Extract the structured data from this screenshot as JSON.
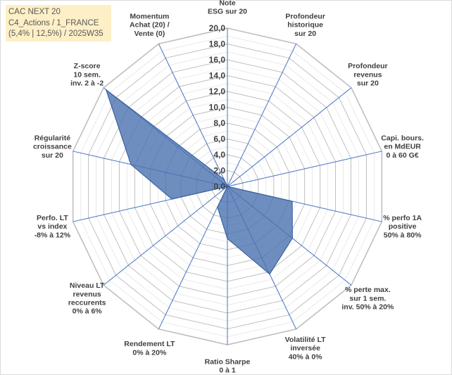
{
  "title_box": {
    "line1": "CAC NEXT 20",
    "line2": "C4_Actions / 1_FRANCE",
    "line3": "(5,4% | 12,5%) / 2025W35"
  },
  "chart_data": {
    "type": "radar",
    "r_min": 0,
    "r_max": 20,
    "ticks": [
      "0,0",
      "2,0",
      "4,0",
      "6,0",
      "8,0",
      "10,0",
      "12,0",
      "14,0",
      "16,0",
      "18,0",
      "20,0"
    ],
    "grid": true,
    "series_color": "#4a72b0",
    "axes": [
      {
        "label": [
          "Note",
          "ESG sur 20"
        ],
        "value": 0
      },
      {
        "label": [
          "Profondeur",
          "historique",
          "sur 20"
        ],
        "value": 0
      },
      {
        "label": [
          "Profondeur",
          "revenus",
          "sur 20"
        ],
        "value": 0
      },
      {
        "label": [
          "Capi. bours.",
          "en MdEUR",
          "0 à 60 G€"
        ],
        "value": 0
      },
      {
        "label": [
          "% perfo 1A",
          "positive",
          "50% à 80%"
        ],
        "value": 8.4
      },
      {
        "label": [
          "% perte max.",
          "sur 1 sem.",
          "inv. 50% à 20%"
        ],
        "value": 10.5
      },
      {
        "label": [
          "Volatilité LT",
          "inversée",
          "40% à 0%"
        ],
        "value": 12.3
      },
      {
        "label": [
          "Ratio Sharpe",
          "0 à 1"
        ],
        "value": 6.6
      },
      {
        "label": [
          "Rendement LT",
          "0% à 20%"
        ],
        "value": 2.9
      },
      {
        "label": [
          "Niveau LT",
          "revenus",
          "reccurents",
          "0% à 6%"
        ],
        "value": 0
      },
      {
        "label": [
          "Perfo. LT",
          "vs index",
          "-8% à 12%"
        ],
        "value": 7.2
      },
      {
        "label": [
          "Régularité",
          "croissance",
          "sur 20"
        ],
        "value": 12.5
      },
      {
        "label": [
          "Z-score",
          "10 sem.",
          "inv. 2 à -2"
        ],
        "value": 19.6
      },
      {
        "label": [
          "Momentum",
          "Achat (20) /",
          "Vente (0)"
        ],
        "value": 1
      }
    ]
  }
}
